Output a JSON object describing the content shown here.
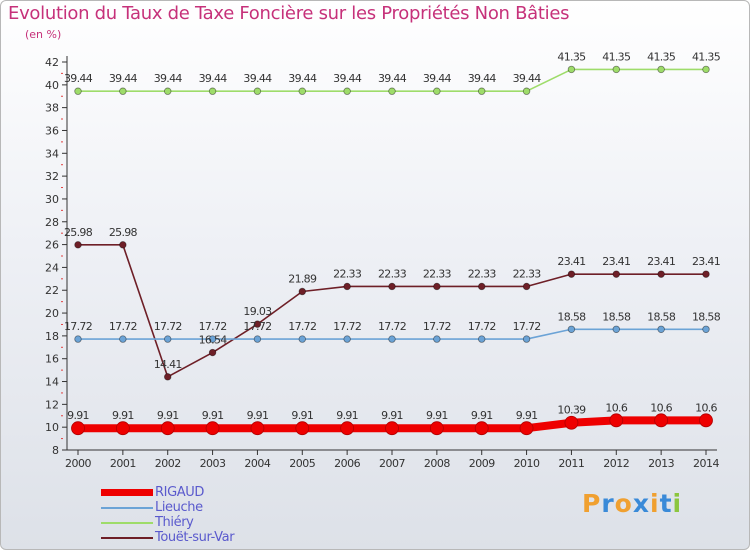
{
  "chart_data": {
    "type": "line",
    "title": "Evolution du Taux de Taxe Foncière sur les Propriétés Non Bâties",
    "unit": "(en %)",
    "xlabel": "",
    "ylabel": "(en %)",
    "ylim": [
      8,
      42
    ],
    "yticks": [
      8,
      10,
      12,
      14,
      16,
      18,
      20,
      22,
      24,
      26,
      28,
      30,
      32,
      34,
      36,
      38,
      40,
      42
    ],
    "categories": [
      "2000",
      "2001",
      "2002",
      "2003",
      "2004",
      "2005",
      "2006",
      "2007",
      "2008",
      "2009",
      "2010",
      "2011",
      "2012",
      "2013",
      "2014"
    ],
    "grid": false,
    "legend_position": "bottom-left",
    "series": [
      {
        "name": "RIGAUD",
        "color": "#ee0000",
        "values": [
          9.91,
          9.91,
          9.91,
          9.91,
          9.91,
          9.91,
          9.91,
          9.91,
          9.91,
          9.91,
          9.91,
          10.39,
          10.6,
          10.6,
          10.6
        ],
        "labels": [
          "9.91",
          "9.91",
          "9.91",
          "9.91",
          "9.91",
          "9.91",
          "9.91",
          "9.91",
          "9.91",
          "9.91",
          "9.91",
          "10.39",
          "10.6",
          "10.6",
          "10.6"
        ]
      },
      {
        "name": "Lieuche",
        "color": "#6ba3d6",
        "values": [
          17.72,
          17.72,
          17.72,
          17.72,
          17.72,
          17.72,
          17.72,
          17.72,
          17.72,
          17.72,
          17.72,
          18.58,
          18.58,
          18.58,
          18.58
        ],
        "labels": [
          "17.72",
          "17.72",
          "17.72",
          "17.72",
          "17.72",
          "17.72",
          "17.72",
          "17.72",
          "17.72",
          "17.72",
          "17.72",
          "18.58",
          "18.58",
          "18.58",
          "18.58"
        ]
      },
      {
        "name": "Thiéry",
        "color": "#9edc6a",
        "values": [
          39.44,
          39.44,
          39.44,
          39.44,
          39.44,
          39.44,
          39.44,
          39.44,
          39.44,
          39.44,
          39.44,
          41.35,
          41.35,
          41.35,
          41.35
        ],
        "labels": [
          "39.44",
          "39.44",
          "39.44",
          "39.44",
          "39.44",
          "39.44",
          "39.44",
          "39.44",
          "39.44",
          "39.44",
          "39.44",
          "41.35",
          "41.35",
          "41.35",
          "41.35"
        ]
      },
      {
        "name": "Touët-sur-Var",
        "color": "#6e1f27",
        "values": [
          25.98,
          25.98,
          14.41,
          16.54,
          19.03,
          21.89,
          22.33,
          22.33,
          22.33,
          22.33,
          22.33,
          23.41,
          23.41,
          23.41,
          23.41
        ],
        "labels": [
          "25.98",
          "25.98",
          "14.41",
          "16.54",
          "19.03",
          "21.89",
          "22.33",
          "22.33",
          "22.33",
          "22.33",
          "22.33",
          "23.41",
          "23.41",
          "23.41",
          "23.41"
        ]
      }
    ]
  },
  "brand": {
    "letters": [
      "P",
      "r",
      "o",
      "x",
      "i",
      "t",
      "i"
    ],
    "colors": [
      "#f0a030",
      "#3a8ad8",
      "#f0a030",
      "#3a8ad8",
      "#f0a030",
      "#3a8ad8",
      "#8cc63e"
    ]
  }
}
